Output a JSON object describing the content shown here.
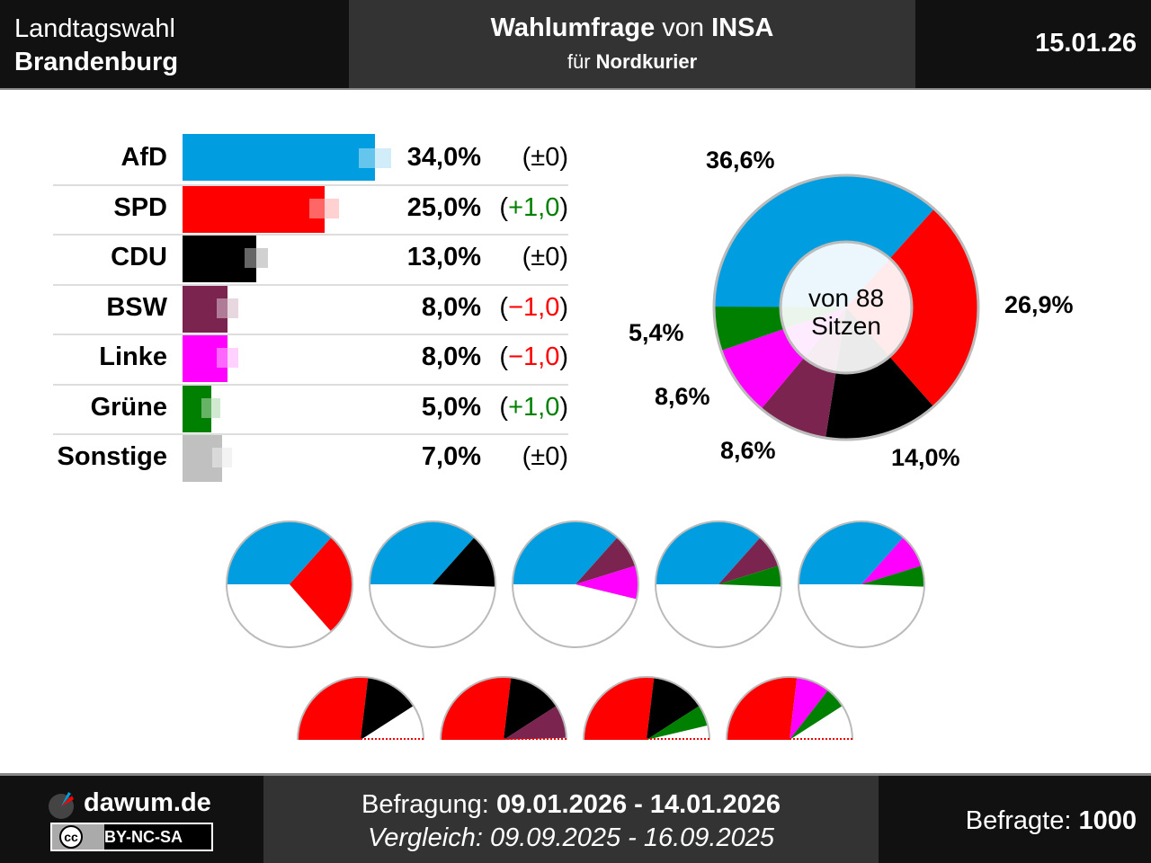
{
  "header": {
    "left_line1": "Landtagswahl",
    "left_line2": "Brandenburg",
    "title_bold1": "Wahlumfrage",
    "title_mid": " von ",
    "title_bold2": "INSA",
    "subtitle_pre": "für ",
    "subtitle_bold": "Nordkurier",
    "date": "15.01.26"
  },
  "footer": {
    "site": "dawum.de",
    "license": "BY-NC-SA",
    "cc": "cc",
    "survey_label": "Befragung: ",
    "survey_range": "09.01.2026 - 14.01.2026",
    "compare": "Vergleich: 09.09.2025 - 16.09.2025",
    "respondents_label": "Befragte: ",
    "respondents": "1000"
  },
  "chart_data": [
    {
      "type": "bar",
      "unit": "%",
      "parties": [
        {
          "name": "AfD",
          "value": 34.0,
          "label": "34,0%",
          "change": "(±0)",
          "change_color": "#000000",
          "error": 2.9,
          "color": "#009ee0"
        },
        {
          "name": "SPD",
          "value": 25.0,
          "label": "25,0%",
          "change": "(+1,0)",
          "change_color": "#008000",
          "error": 2.6,
          "color": "#ff0000"
        },
        {
          "name": "CDU",
          "value": 13.0,
          "label": "13,0%",
          "change": "(±0)",
          "change_color": "#000000",
          "error": 2.1,
          "color": "#000000"
        },
        {
          "name": "BSW",
          "value": 8.0,
          "label": "8,0%",
          "change": "(−1,0)",
          "change_color": "#ff0000",
          "error": 1.9,
          "color": "#7b2450"
        },
        {
          "name": "Linke",
          "value": 8.0,
          "label": "8,0%",
          "change": "(−1,0)",
          "change_color": "#ff0000",
          "error": 1.9,
          "color": "#ff00ff"
        },
        {
          "name": "Grüne",
          "value": 5.0,
          "label": "5,0%",
          "change": "(+1,0)",
          "change_color": "#008000",
          "error": 1.7,
          "color": "#008000"
        },
        {
          "name": "Sonstige",
          "value": 7.0,
          "label": "7,0%",
          "change": "(±0)",
          "change_color": "#000000",
          "error": 1.8,
          "color": "#c0c0c0"
        }
      ]
    },
    {
      "type": "pie",
      "subtype": "donut",
      "center_text1": "von 88",
      "center_text2": "Sitzen",
      "slices": [
        {
          "party": "AfD",
          "value": 36.6,
          "label": "36,6%",
          "color": "#009ee0"
        },
        {
          "party": "SPD",
          "value": 26.9,
          "label": "26,9%",
          "color": "#ff0000"
        },
        {
          "party": "CDU",
          "value": 14.0,
          "label": "14,0%",
          "color": "#000000"
        },
        {
          "party": "BSW",
          "value": 8.6,
          "label": "8,6%",
          "color": "#7b2450"
        },
        {
          "party": "Linke",
          "value": 8.6,
          "label": "8,6%",
          "color": "#ff00ff"
        },
        {
          "party": "Grüne",
          "value": 5.4,
          "label": "5,4%",
          "color": "#008000"
        }
      ]
    },
    {
      "type": "pie",
      "subtype": "coalitions",
      "majority": "full circle",
      "coalitions": [
        [
          "AfD",
          "SPD"
        ],
        [
          "AfD",
          "CDU"
        ],
        [
          "AfD",
          "BSW",
          "Linke"
        ],
        [
          "AfD",
          "BSW",
          "Grüne"
        ],
        [
          "AfD",
          "Linke",
          "Grüne"
        ]
      ]
    },
    {
      "type": "pie",
      "subtype": "coalitions",
      "majority": "half circle",
      "coalitions": [
        [
          "SPD",
          "CDU"
        ],
        [
          "SPD",
          "CDU",
          "BSW"
        ],
        [
          "SPD",
          "CDU",
          "Grüne"
        ],
        [
          "SPD",
          "Linke",
          "Grüne"
        ]
      ]
    }
  ]
}
